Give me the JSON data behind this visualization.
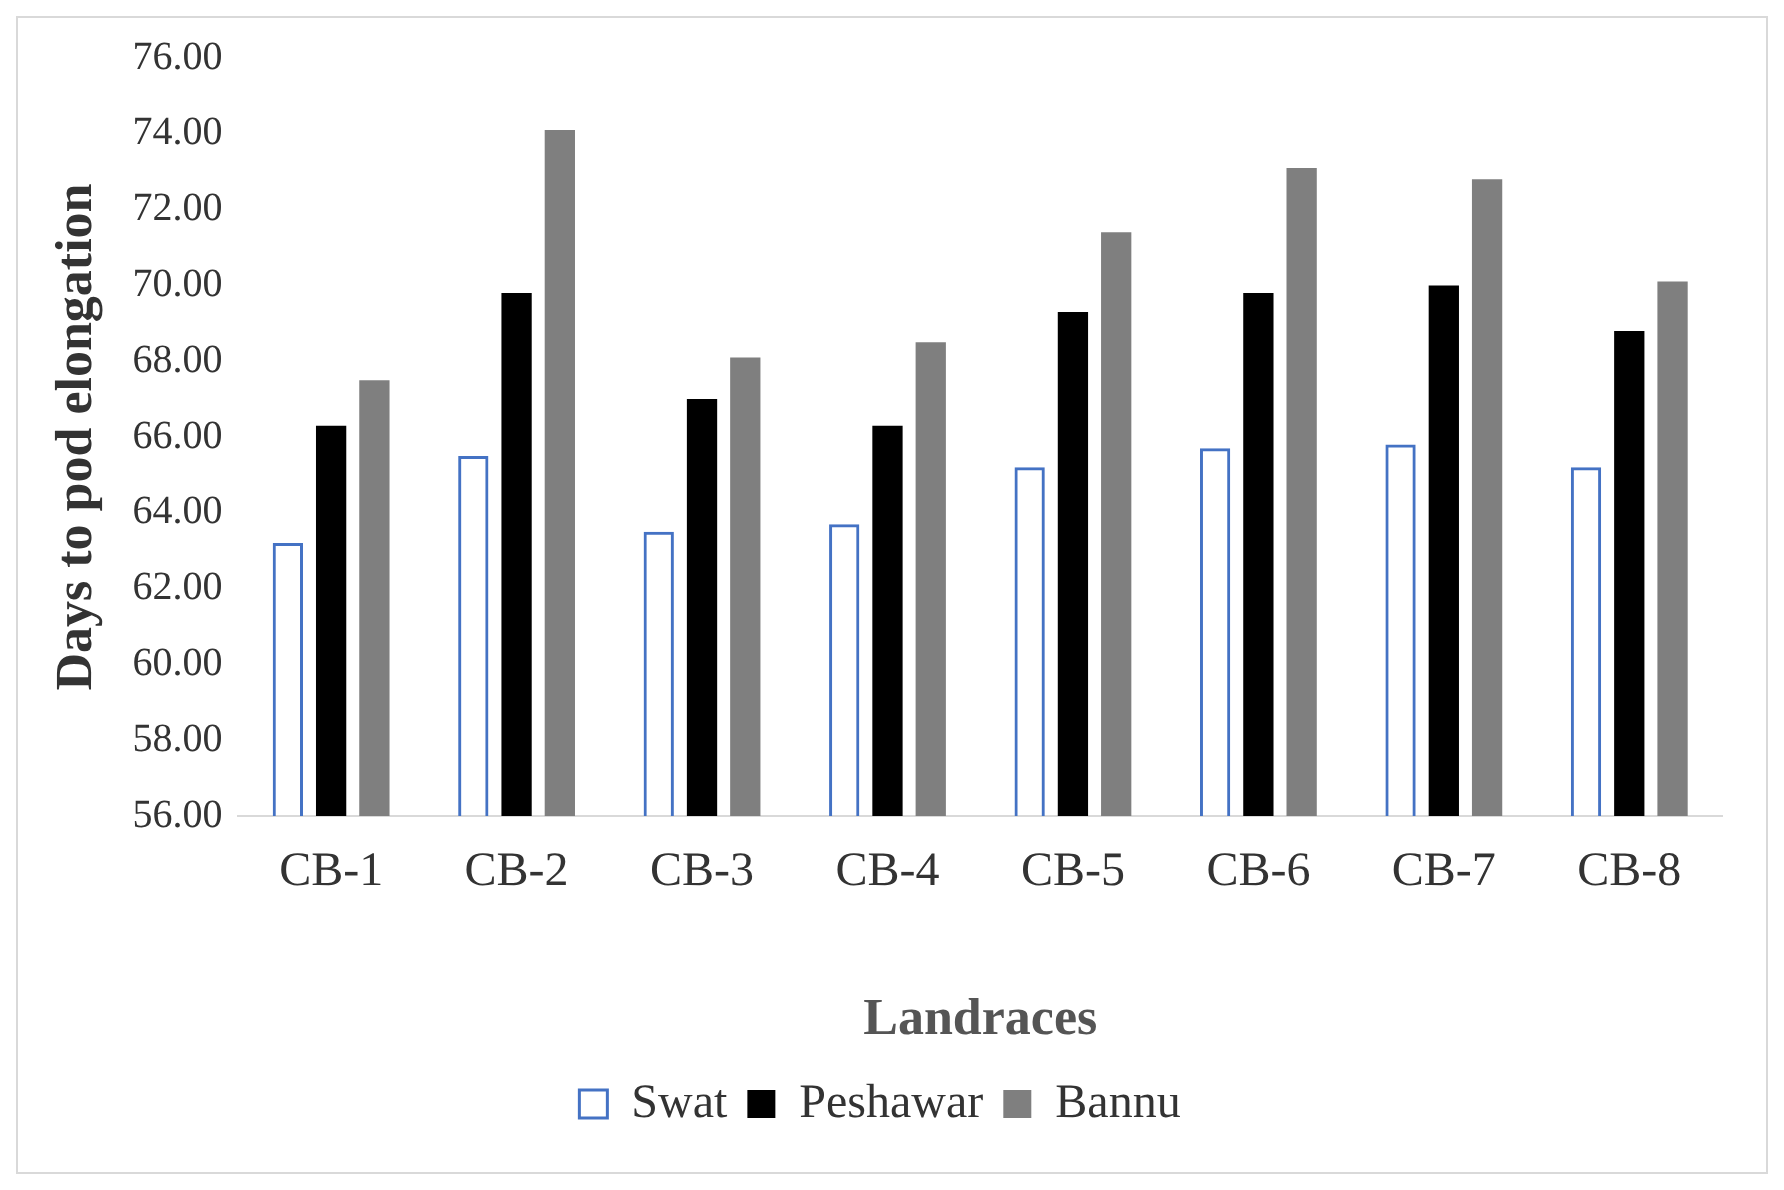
{
  "chart_data": {
    "type": "bar",
    "xlabel": "Landraces",
    "ylabel": "Days to pod elongation",
    "categories": [
      "CB-1",
      "CB-2",
      "CB-3",
      "CB-4",
      "CB-5",
      "CB-6",
      "CB-7",
      "CB-8"
    ],
    "series": [
      {
        "name": "Swat",
        "color": "#4472c4",
        "values": [
          63.2,
          65.5,
          63.5,
          63.7,
          65.2,
          65.7,
          65.8,
          65.2
        ]
      },
      {
        "name": "Peshawar",
        "color": "#000000",
        "values": [
          66.3,
          69.8,
          67.0,
          66.3,
          69.3,
          69.8,
          70.0,
          68.8
        ]
      },
      {
        "name": "Bannu",
        "color": "#7f7f7f",
        "values": [
          67.5,
          74.1,
          68.1,
          68.5,
          71.4,
          73.1,
          72.8,
          70.1
        ]
      }
    ],
    "ylim": [
      56,
      76
    ],
    "yticks": [
      {
        "value": 56,
        "label": "56.00"
      },
      {
        "value": 58,
        "label": "58.00"
      },
      {
        "value": 60,
        "label": "60.00"
      },
      {
        "value": 62,
        "label": "62.00"
      },
      {
        "value": 64,
        "label": "64.00"
      },
      {
        "value": 66,
        "label": "66.00"
      },
      {
        "value": 68,
        "label": "68.00"
      },
      {
        "value": 70,
        "label": "70.00"
      },
      {
        "value": 72,
        "label": "72.00"
      },
      {
        "value": 74,
        "label": "74.00"
      },
      {
        "value": 76,
        "label": "76.00"
      }
    ],
    "grid": false,
    "legend": "bottom"
  }
}
